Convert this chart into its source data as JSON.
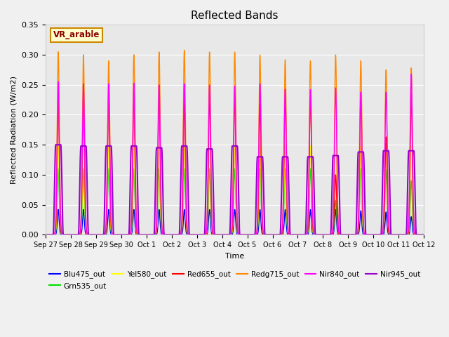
{
  "title": "Reflected Bands",
  "xlabel": "Time",
  "ylabel": "Reflected Radiation (W/m2)",
  "annotation": "VR_arable",
  "ylim": [
    0,
    0.35
  ],
  "series_order": [
    "Blu475_out",
    "Grn535_out",
    "Yel580_out",
    "Red655_out",
    "Redg715_out",
    "Nir840_out",
    "Nir945_out"
  ],
  "series": {
    "Blu475_out": {
      "color": "#0000ff",
      "lw": 1.0
    },
    "Grn535_out": {
      "color": "#00dd00",
      "lw": 1.0
    },
    "Yel580_out": {
      "color": "#ffff00",
      "lw": 1.0
    },
    "Red655_out": {
      "color": "#ff0000",
      "lw": 1.0
    },
    "Redg715_out": {
      "color": "#ff8800",
      "lw": 1.0
    },
    "Nir840_out": {
      "color": "#ff00ff",
      "lw": 1.0
    },
    "Nir945_out": {
      "color": "#9900cc",
      "lw": 1.5
    }
  },
  "n_days": 15,
  "points_per_day": 200,
  "tick_labels": [
    "Sep 27",
    "Sep 28",
    "Sep 29",
    "Sep 30",
    "Oct 1",
    "Oct 2",
    "Oct 3",
    "Oct 4",
    "Oct 5",
    "Oct 6",
    "Oct 7",
    "Oct 8",
    "Oct 9",
    "Oct 10",
    "Oct 11",
    "Oct 12"
  ],
  "figsize": [
    6.4,
    4.8
  ],
  "dpi": 100,
  "fig_facecolor": "#f0f0f0",
  "plot_facecolor": "#e8e8e8",
  "grid_color": "#ffffff",
  "yticks": [
    0.0,
    0.05,
    0.1,
    0.15,
    0.2,
    0.25,
    0.3,
    0.35
  ]
}
